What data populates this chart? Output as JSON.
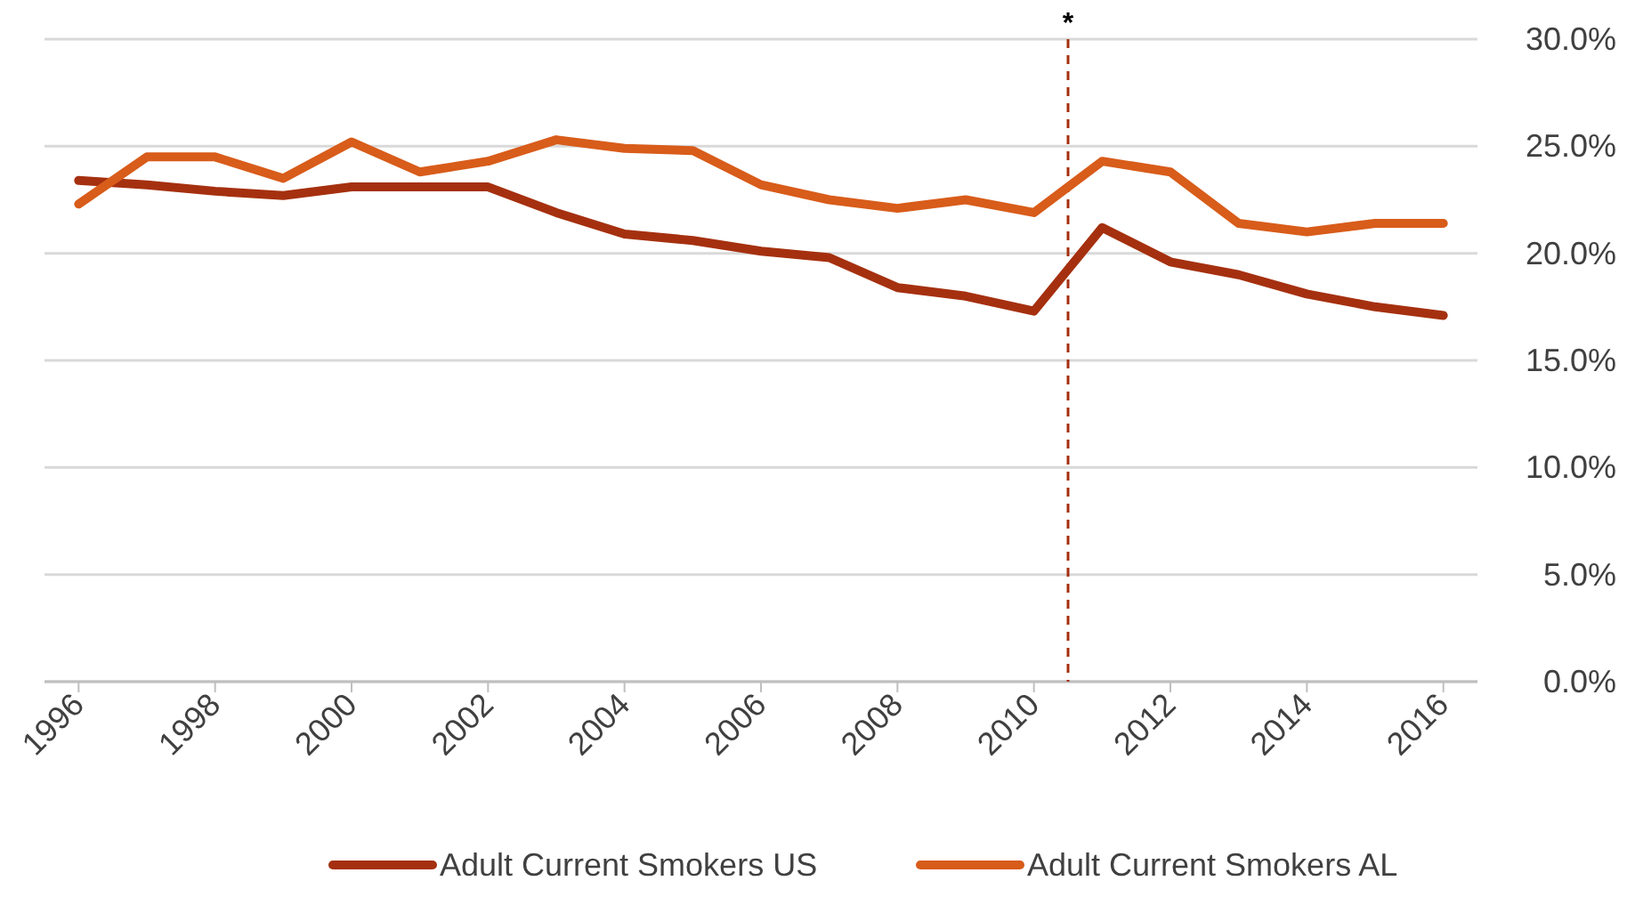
{
  "chart_data": {
    "type": "line",
    "x": [
      1996,
      1997,
      1998,
      1999,
      2000,
      2001,
      2002,
      2003,
      2004,
      2005,
      2006,
      2007,
      2008,
      2009,
      2010,
      2011,
      2012,
      2013,
      2014,
      2015,
      2016
    ],
    "series": [
      {
        "name": "Adult Current Smokers US",
        "color": "#a5300f",
        "values": [
          23.4,
          23.2,
          22.9,
          22.7,
          23.1,
          23.1,
          23.1,
          21.9,
          20.9,
          20.6,
          20.1,
          19.8,
          18.4,
          18.0,
          17.3,
          21.2,
          19.6,
          19.0,
          18.1,
          17.5,
          17.1
        ]
      },
      {
        "name": "Adult Current Smokers AL",
        "color": "#d85c1a",
        "values": [
          22.3,
          24.5,
          24.5,
          23.5,
          25.2,
          23.8,
          24.3,
          25.3,
          24.9,
          24.8,
          23.2,
          22.5,
          22.1,
          22.5,
          21.9,
          24.3,
          23.8,
          21.4,
          21.0,
          21.4,
          21.4
        ]
      }
    ],
    "xlim": [
      1995.5,
      2016.5
    ],
    "xticks": [
      1996,
      1998,
      2000,
      2002,
      2004,
      2006,
      2008,
      2010,
      2012,
      2014,
      2016
    ],
    "ylim": [
      0,
      30
    ],
    "yticks": [
      {
        "value": 0,
        "label": "0.0%"
      },
      {
        "value": 5,
        "label": "5.0%"
      },
      {
        "value": 10,
        "label": "10.0%"
      },
      {
        "value": 15,
        "label": "15.0%"
      },
      {
        "value": 20,
        "label": "20.0%"
      },
      {
        "value": 25,
        "label": "25.0%"
      },
      {
        "value": 30,
        "label": "30.0%"
      }
    ],
    "ref_lines": [
      {
        "axis": "x",
        "value": 2010.5,
        "label": "*",
        "color": "#a5300f",
        "line_style": "dashed"
      }
    ],
    "grid": "y",
    "legend": "bottom",
    "marker": "none",
    "line_style": "solid"
  }
}
